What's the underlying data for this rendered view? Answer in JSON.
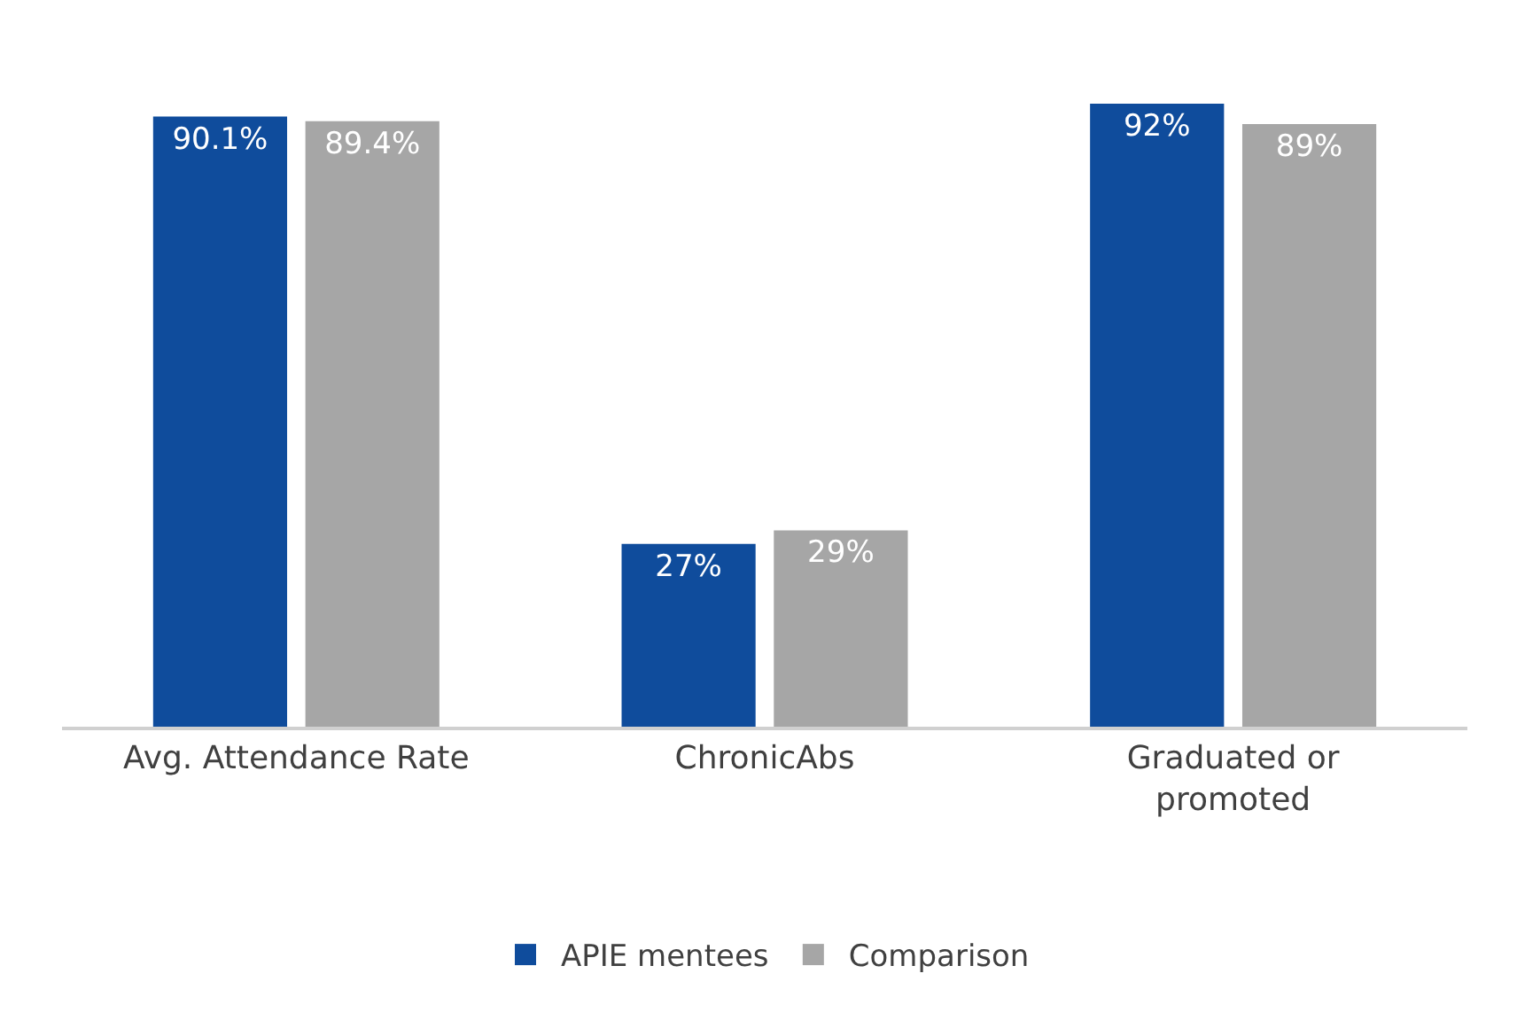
{
  "chart_data": {
    "type": "bar",
    "categories": [
      "Avg. Attendance Rate",
      "ChronicAbs",
      "Graduated or\npromoted"
    ],
    "series": [
      {
        "name": "APIE mentees",
        "color": "#0f4c9c",
        "values": [
          90.1,
          27,
          92
        ],
        "value_labels": [
          "90.1%",
          "27%",
          "92%"
        ]
      },
      {
        "name": "Comparison",
        "color": "#a6a6a6",
        "values": [
          89.4,
          29,
          89
        ],
        "value_labels": [
          "89.4%",
          "29%",
          "89%"
        ]
      }
    ],
    "tick_labels": "x",
    "legend": "bottom"
  }
}
